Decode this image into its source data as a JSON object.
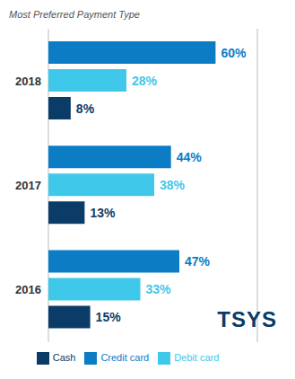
{
  "chart_data": {
    "type": "bar",
    "title": "Most Preferred Payment Type",
    "orientation": "horizontal",
    "categories": [
      "2018",
      "2017",
      "2016"
    ],
    "series": [
      {
        "name": "Credit card",
        "color": "#0c7cc4",
        "values": [
          60,
          44,
          47
        ],
        "value_labels": [
          "60%",
          "44%",
          "47%"
        ]
      },
      {
        "name": "Debit card",
        "color": "#40c8ea",
        "values": [
          28,
          38,
          33
        ],
        "value_labels": [
          "28%",
          "38%",
          "33%"
        ]
      },
      {
        "name": "Cash",
        "color": "#0b3b67",
        "values": [
          8,
          13,
          15
        ],
        "value_labels": [
          "8%",
          "13%",
          "15%"
        ]
      }
    ],
    "xlim": [
      0,
      75
    ],
    "xticks": [
      0,
      15,
      30,
      45,
      60,
      75
    ],
    "grid": true,
    "data_labels": true,
    "tick_labels": "y",
    "legend": "bottom",
    "annotations": [
      "TSYS"
    ]
  }
}
